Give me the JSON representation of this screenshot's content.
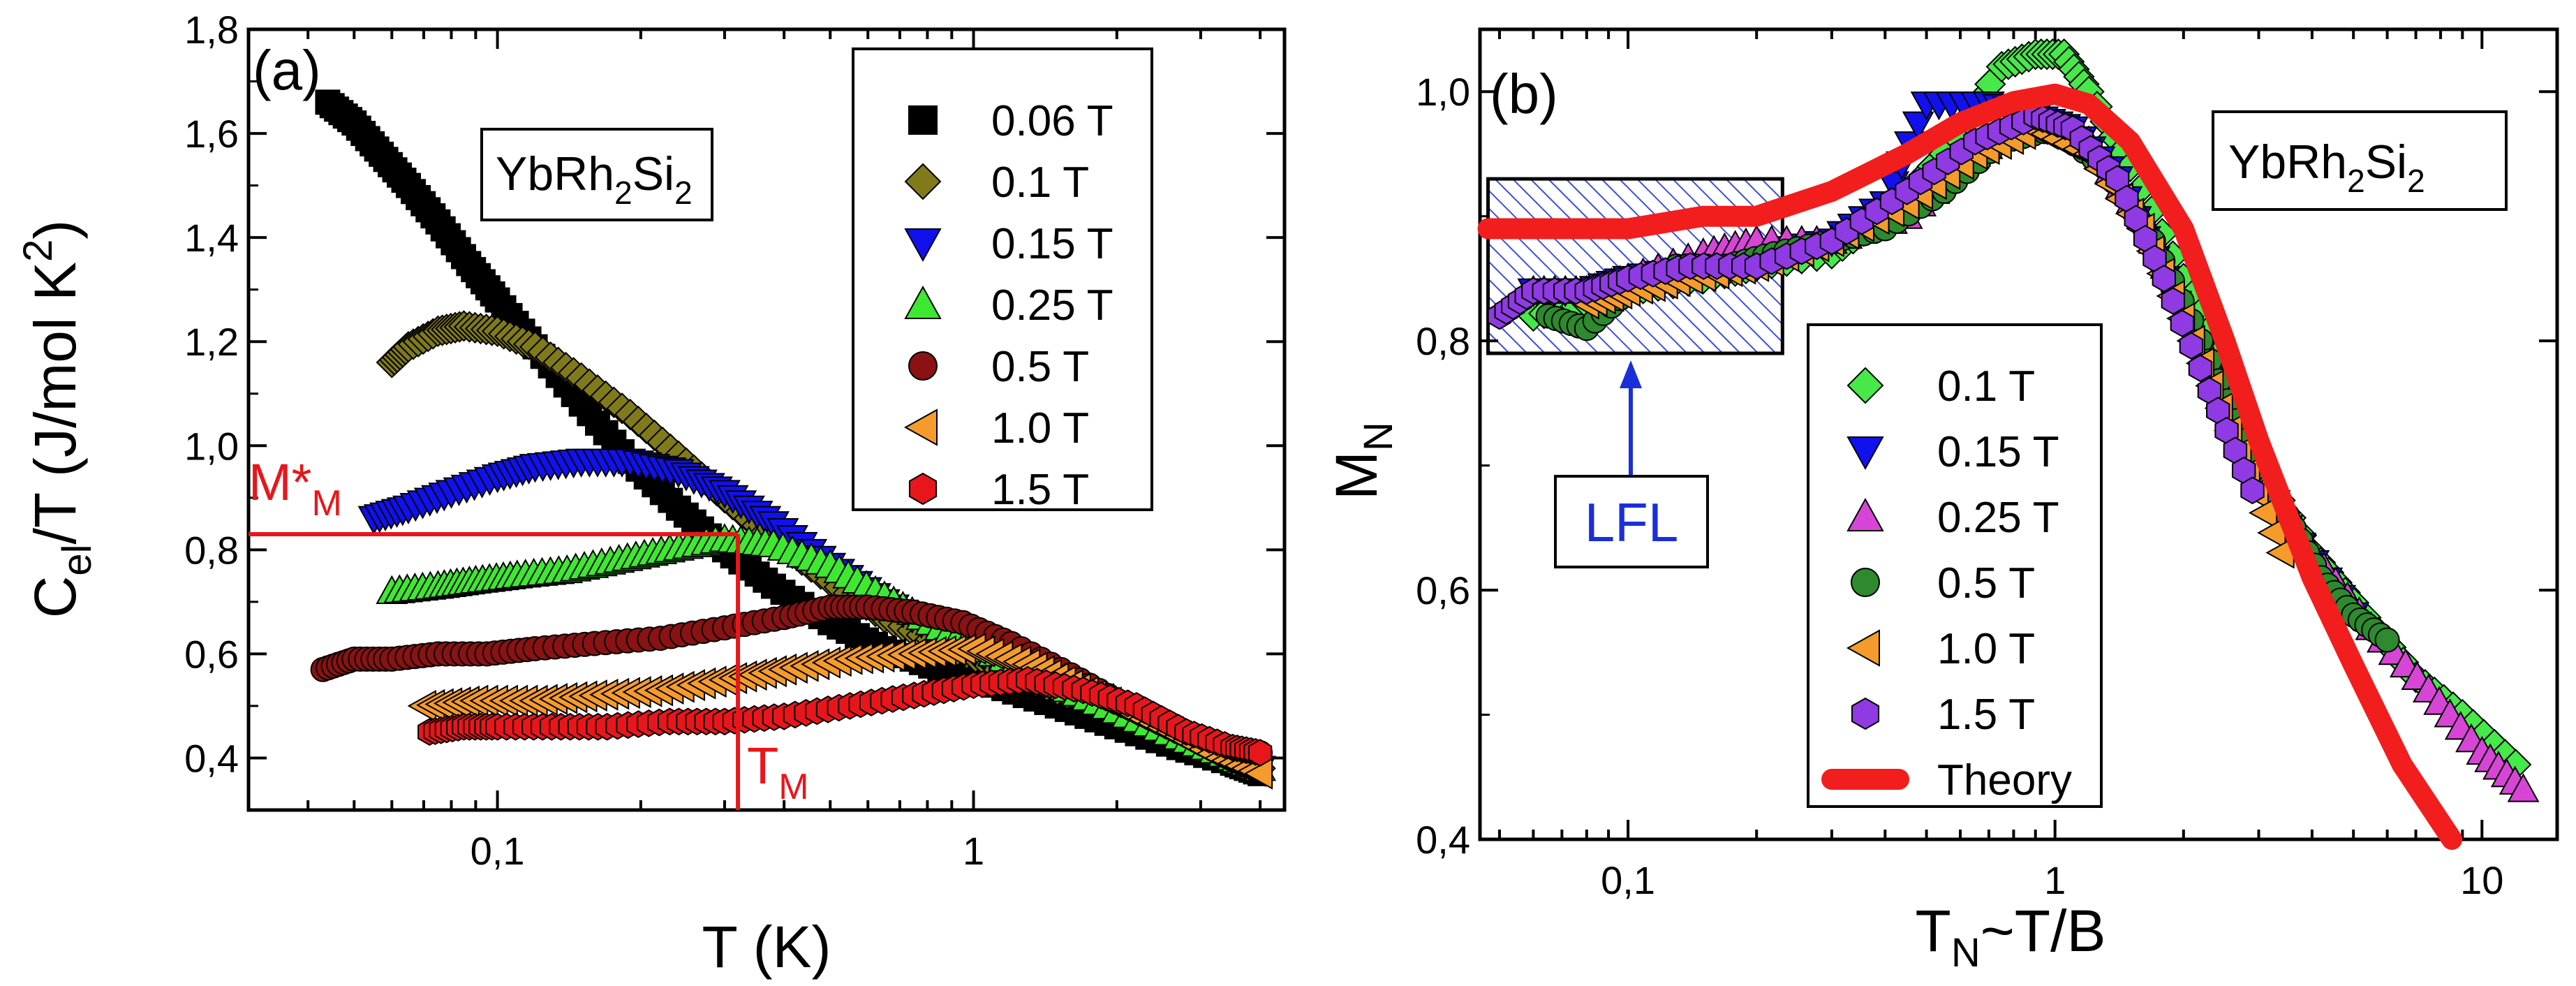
{
  "chart_data": [
    {
      "type": "scatter",
      "panel_label": "(a)",
      "xlabel": "T (K)",
      "ylabel_parts": [
        "C",
        "el",
        "/T (J/mol K",
        "2",
        ")"
      ],
      "xscale": "log",
      "xlim": [
        0.03,
        4.5
      ],
      "ylim": [
        0.3,
        1.8
      ],
      "xticks": [
        {
          "v": 0.1,
          "label": "0,1"
        },
        {
          "v": 1,
          "label": "1"
        }
      ],
      "yticks": [
        {
          "v": 0.4,
          "label": "0,4"
        },
        {
          "v": 0.6,
          "label": "0,6"
        },
        {
          "v": 0.8,
          "label": "0,8"
        },
        {
          "v": 1.0,
          "label": "1,0"
        },
        {
          "v": 1.2,
          "label": "1,2"
        },
        {
          "v": 1.4,
          "label": "1,4"
        },
        {
          "v": 1.6,
          "label": "1,6"
        },
        {
          "v": 1.8,
          "label": "1,8"
        }
      ],
      "sample_label_parts": [
        "YbRh",
        "2",
        "Si",
        "2"
      ],
      "annotation_m_parts": [
        "M*",
        "M"
      ],
      "annotation_t_parts": [
        "T",
        "M"
      ],
      "annotation_tm_value": 0.32,
      "annotation_m_value": 0.83,
      "annotation_color": "#e8161b",
      "legend_position": "top-right",
      "series": [
        {
          "name": "0.06 T",
          "marker": "square",
          "color": "#000000",
          "x": [
            0.044,
            0.05,
            0.057,
            0.065,
            0.075,
            0.087,
            0.1,
            0.12,
            0.15,
            0.19,
            0.24,
            0.3,
            0.38,
            0.5,
            0.65,
            0.85,
            1.1,
            1.5,
            2.0,
            2.7,
            3.5,
            4.0
          ],
          "y": [
            1.66,
            1.62,
            1.56,
            1.5,
            1.43,
            1.35,
            1.28,
            1.19,
            1.08,
            0.97,
            0.88,
            0.8,
            0.73,
            0.66,
            0.61,
            0.57,
            0.54,
            0.5,
            0.46,
            0.42,
            0.39,
            0.37
          ]
        },
        {
          "name": "0.1 T",
          "marker": "diamond",
          "color": "#817a1b",
          "x": [
            0.06,
            0.065,
            0.075,
            0.085,
            0.1,
            0.12,
            0.15,
            0.19,
            0.24,
            0.3,
            0.38,
            0.5,
            0.65,
            0.85,
            1.1,
            1.5,
            2.0,
            2.7,
            3.5,
            4.0
          ],
          "y": [
            1.16,
            1.19,
            1.22,
            1.23,
            1.22,
            1.19,
            1.13,
            1.06,
            0.98,
            0.9,
            0.82,
            0.74,
            0.67,
            0.62,
            0.58,
            0.53,
            0.49,
            0.44,
            0.4,
            0.38
          ]
        },
        {
          "name": "0.15 T",
          "marker": "triangle-down",
          "color": "#1111ee",
          "x": [
            0.055,
            0.065,
            0.08,
            0.1,
            0.12,
            0.15,
            0.19,
            0.24,
            0.3,
            0.38,
            0.5,
            0.65,
            0.85,
            1.1,
            1.5,
            2.0,
            2.7,
            3.5,
            4.0
          ],
          "y": [
            0.86,
            0.88,
            0.91,
            0.94,
            0.96,
            0.97,
            0.97,
            0.95,
            0.91,
            0.85,
            0.77,
            0.7,
            0.64,
            0.59,
            0.54,
            0.49,
            0.44,
            0.4,
            0.38
          ]
        },
        {
          "name": "0.25 T",
          "marker": "triangle-up",
          "color": "#3ee831",
          "x": [
            0.06,
            0.075,
            0.09,
            0.11,
            0.14,
            0.18,
            0.23,
            0.3,
            0.38,
            0.5,
            0.65,
            0.85,
            1.1,
            1.5,
            2.0,
            2.7,
            3.5,
            4.0
          ],
          "y": [
            0.72,
            0.73,
            0.74,
            0.75,
            0.76,
            0.78,
            0.8,
            0.82,
            0.81,
            0.77,
            0.71,
            0.65,
            0.6,
            0.54,
            0.49,
            0.44,
            0.4,
            0.38
          ]
        },
        {
          "name": "0.5 T",
          "marker": "circle",
          "color": "#8a1212",
          "x": [
            0.043,
            0.05,
            0.06,
            0.075,
            0.095,
            0.12,
            0.16,
            0.22,
            0.3,
            0.4,
            0.5,
            0.6,
            0.75,
            0.95,
            1.2,
            1.6,
            2.1,
            2.7,
            3.5,
            4.0
          ],
          "y": [
            0.57,
            0.59,
            0.59,
            0.6,
            0.6,
            0.61,
            0.62,
            0.63,
            0.65,
            0.67,
            0.69,
            0.69,
            0.68,
            0.66,
            0.62,
            0.56,
            0.5,
            0.45,
            0.42,
            0.41
          ]
        },
        {
          "name": "1.0 T",
          "marker": "triangle-left",
          "color": "#f59b2c",
          "x": [
            0.07,
            0.09,
            0.12,
            0.16,
            0.22,
            0.3,
            0.4,
            0.55,
            0.75,
            1.0,
            1.3,
            1.6,
            2.0,
            2.6,
            3.3,
            4.0
          ],
          "y": [
            0.5,
            0.51,
            0.51,
            0.52,
            0.53,
            0.55,
            0.57,
            0.59,
            0.6,
            0.61,
            0.58,
            0.54,
            0.5,
            0.45,
            0.4,
            0.37
          ]
        },
        {
          "name": "1.5 T",
          "marker": "hexagon",
          "color": "#e8161b",
          "x": [
            0.072,
            0.085,
            0.1,
            0.13,
            0.17,
            0.23,
            0.3,
            0.4,
            0.55,
            0.75,
            1.0,
            1.3,
            1.7,
            2.2,
            2.8,
            3.5,
            4.0
          ],
          "y": [
            0.45,
            0.46,
            0.46,
            0.46,
            0.46,
            0.47,
            0.47,
            0.48,
            0.5,
            0.52,
            0.54,
            0.55,
            0.53,
            0.5,
            0.45,
            0.42,
            0.41
          ]
        }
      ]
    },
    {
      "type": "scatter",
      "panel_label": "(b)",
      "xlabel_parts": [
        "T",
        "N",
        "~T/B"
      ],
      "ylabel_parts": [
        "M",
        "N"
      ],
      "xscale": "log",
      "xlim": [
        0.045,
        15
      ],
      "ylim": [
        0.4,
        1.05
      ],
      "xticks": [
        {
          "v": 0.1,
          "label": "0,1"
        },
        {
          "v": 1,
          "label": "1"
        },
        {
          "v": 10,
          "label": "10"
        }
      ],
      "yticks": [
        {
          "v": 0.4,
          "label": "0,4"
        },
        {
          "v": 0.6,
          "label": "0,6"
        },
        {
          "v": 0.8,
          "label": "0,8"
        },
        {
          "v": 1.0,
          "label": "1,0"
        }
      ],
      "sample_label_parts": [
        "YbRh",
        "2",
        "Si",
        "2"
      ],
      "lfl_label": "LFL",
      "lfl_region": {
        "x": [
          0.047,
          0.23
        ],
        "y": [
          0.79,
          0.93
        ]
      },
      "legend_position": "bottom-center",
      "series": [
        {
          "name": "0.1 T",
          "marker": "diamond",
          "color": "#47e84a",
          "x": [
            0.06,
            0.08,
            0.1,
            0.15,
            0.2,
            0.3,
            0.4,
            0.55,
            0.75,
            0.9,
            1.05,
            1.2,
            1.5,
            2.0,
            2.5,
            3.0,
            4.0,
            5.0,
            7.0,
            9.0,
            12.0
          ],
          "y": [
            0.82,
            0.83,
            0.84,
            0.85,
            0.86,
            0.87,
            0.9,
            0.95,
            1.02,
            1.03,
            1.03,
            1.0,
            0.94,
            0.85,
            0.78,
            0.7,
            0.63,
            0.59,
            0.53,
            0.5,
            0.46
          ]
        },
        {
          "name": "0.15 T",
          "marker": "triangle-down",
          "color": "#1111ee",
          "x": [
            0.06,
            0.08,
            0.1,
            0.15,
            0.2,
            0.3,
            0.4,
            0.5,
            0.7,
            0.9,
            1.1,
            1.4,
            1.8,
            2.5,
            3.5,
            5.0
          ],
          "y": [
            0.84,
            0.84,
            0.85,
            0.86,
            0.87,
            0.88,
            0.91,
            0.99,
            0.99,
            0.98,
            0.97,
            0.93,
            0.85,
            0.75,
            0.65,
            0.58
          ]
        },
        {
          "name": "0.25 T",
          "marker": "triangle-up",
          "color": "#d745d6",
          "x": [
            0.06,
            0.08,
            0.1,
            0.15,
            0.2,
            0.3,
            0.45,
            0.65,
            0.9,
            1.2,
            1.6,
            2.2,
            3.0,
            4.0,
            5.5,
            7.5,
            10.0,
            12.5
          ],
          "y": [
            0.84,
            0.84,
            0.85,
            0.87,
            0.88,
            0.88,
            0.9,
            0.95,
            0.98,
            0.96,
            0.9,
            0.8,
            0.7,
            0.63,
            0.57,
            0.52,
            0.47,
            0.44
          ]
        },
        {
          "name": "0.5 T",
          "marker": "circle",
          "color": "#2d8a2e",
          "x": [
            0.065,
            0.08,
            0.1,
            0.13,
            0.17,
            0.22,
            0.3,
            0.4,
            0.55,
            0.75,
            1.0,
            1.3,
            1.7,
            2.2,
            2.8,
            3.5,
            4.2,
            5.0,
            6.0
          ],
          "y": [
            0.82,
            0.81,
            0.84,
            0.86,
            0.86,
            0.87,
            0.88,
            0.89,
            0.92,
            0.96,
            0.97,
            0.94,
            0.88,
            0.8,
            0.72,
            0.66,
            0.61,
            0.58,
            0.56
          ]
        },
        {
          "name": "1.0 T",
          "marker": "triangle-left",
          "color": "#f59b2c",
          "x": [
            0.08,
            0.1,
            0.14,
            0.2,
            0.3,
            0.45,
            0.65,
            0.9,
            1.2,
            1.6,
            2.1,
            2.7,
            3.4
          ],
          "y": [
            0.83,
            0.84,
            0.85,
            0.86,
            0.88,
            0.91,
            0.95,
            0.97,
            0.95,
            0.89,
            0.8,
            0.71,
            0.63
          ]
        },
        {
          "name": "1.5 T",
          "marker": "hexagon",
          "color": "#8f3ae3",
          "x": [
            0.05,
            0.06,
            0.08,
            0.1,
            0.14,
            0.2,
            0.3,
            0.45,
            0.65,
            0.9,
            1.1,
            1.4,
            1.8,
            2.3,
            2.9
          ],
          "y": [
            0.82,
            0.84,
            0.84,
            0.85,
            0.86,
            0.86,
            0.88,
            0.92,
            0.96,
            0.98,
            0.97,
            0.93,
            0.85,
            0.76,
            0.68
          ]
        },
        {
          "name": "Theory",
          "marker": "line",
          "color": "#f21d1d",
          "x": [
            0.047,
            0.07,
            0.1,
            0.15,
            0.2,
            0.3,
            0.45,
            0.6,
            0.8,
            1.0,
            1.2,
            1.5,
            2.0,
            2.5,
            3.0,
            4.0,
            5.0,
            6.5,
            8.5
          ],
          "y": [
            0.89,
            0.89,
            0.89,
            0.9,
            0.9,
            0.92,
            0.95,
            0.975,
            0.992,
            0.998,
            0.99,
            0.96,
            0.89,
            0.8,
            0.72,
            0.61,
            0.54,
            0.46,
            0.4
          ]
        }
      ]
    }
  ]
}
